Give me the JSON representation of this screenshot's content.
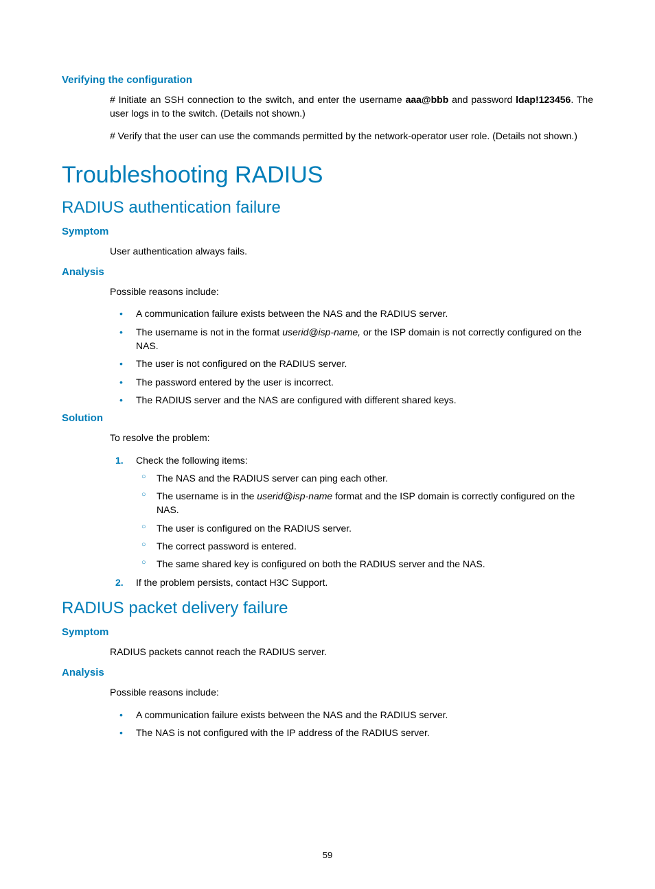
{
  "colors": {
    "accent": "#007db8",
    "text": "#000000",
    "background": "#ffffff"
  },
  "typography": {
    "h1_fontsize": 34,
    "h2_fontsize": 24,
    "h3_fontsize": 15,
    "body_fontsize": 14
  },
  "page_number": "59",
  "sec_verify": {
    "heading": "Verifying the configuration",
    "p1_pre": "# Initiate an SSH connection to the switch, and enter the username ",
    "p1_user": "aaa@bbb",
    "p1_mid": " and password ",
    "p1_pass": "ldap!123456",
    "p1_post": ". The user logs in to the switch. (Details not shown.)",
    "p2": "# Verify that the user can use the commands permitted by the network-operator user role. (Details not shown.)"
  },
  "sec_trouble": {
    "heading": "Troubleshooting RADIUS"
  },
  "sec_authfail": {
    "heading": "RADIUS authentication failure",
    "symptom_h": "Symptom",
    "symptom_p": "User authentication always fails.",
    "analysis_h": "Analysis",
    "analysis_intro": "Possible reasons include:",
    "analysis_items": {
      "i0": "A communication failure exists between the NAS and the RADIUS server.",
      "i1_pre": "The username is not in the format ",
      "i1_italic": "userid@isp-name,",
      "i1_post": " or the ISP domain is not correctly configured on the NAS.",
      "i2": "The user is not configured on the RADIUS server.",
      "i3": "The password entered by the user is incorrect.",
      "i4": "The RADIUS server and the NAS are configured with different shared keys."
    },
    "solution_h": "Solution",
    "solution_intro": "To resolve the problem:",
    "solution_steps": {
      "s1": "Check the following items:",
      "s1_sub": {
        "a": "The NAS and the RADIUS server can ping each other.",
        "b_pre": "The username is in the ",
        "b_italic": "userid@isp-name",
        "b_post": " format and the ISP domain is correctly configured on the NAS.",
        "c": "The user is configured on the RADIUS server.",
        "d": "The correct password is entered.",
        "e": "The same shared key is configured on both the RADIUS server and the NAS."
      },
      "s2": "If the problem persists, contact H3C Support."
    }
  },
  "sec_pktfail": {
    "heading": "RADIUS packet delivery failure",
    "symptom_h": "Symptom",
    "symptom_p": "RADIUS packets cannot reach the RADIUS server.",
    "analysis_h": "Analysis",
    "analysis_intro": "Possible reasons include:",
    "analysis_items": {
      "i0": "A communication failure exists between the NAS and the RADIUS server.",
      "i1": "The NAS is not configured with the IP address of the RADIUS server."
    }
  }
}
